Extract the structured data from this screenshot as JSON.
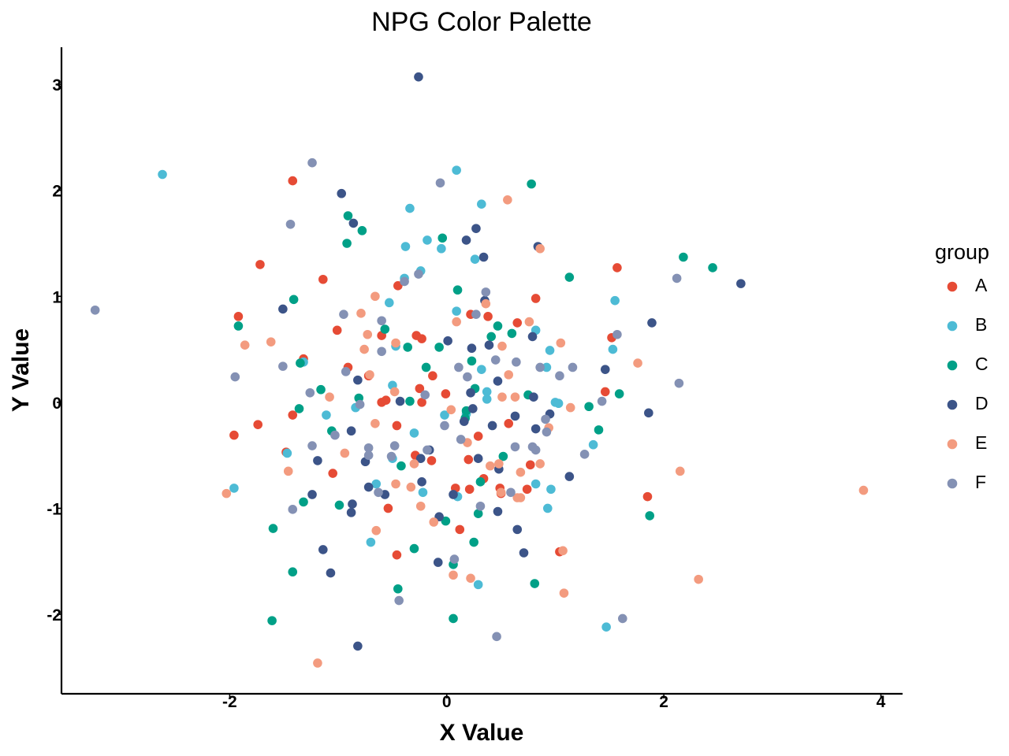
{
  "chart_data": {
    "type": "scatter",
    "title": "NPG Color Palette",
    "xlabel": "X Value",
    "ylabel": "Y Value",
    "xlim": [
      -3.55,
      4.2
    ],
    "ylim": [
      -2.75,
      3.35
    ],
    "xticks": [
      -2,
      0,
      2,
      4
    ],
    "yticks": [
      -2,
      -1,
      0,
      1,
      2,
      3
    ],
    "xtick_labels": [
      "-2",
      "0",
      "2",
      "4"
    ],
    "ytick_labels": [
      "-2",
      "-1",
      "0",
      "1",
      "2",
      "3"
    ],
    "grid": false,
    "legend": {
      "title": "group",
      "position": "right"
    },
    "series": [
      {
        "name": "A",
        "color": "#E64B35",
        "points": [
          [
            -1.42,
            2.09
          ],
          [
            -1.72,
            1.3
          ],
          [
            -1.14,
            1.16
          ],
          [
            -1.92,
            0.81
          ],
          [
            -1.32,
            0.41
          ],
          [
            -1.01,
            0.68
          ],
          [
            -0.91,
            0.33
          ],
          [
            -1.42,
            -0.12
          ],
          [
            -1.74,
            -0.21
          ],
          [
            -1.96,
            -0.31
          ],
          [
            -1.48,
            -0.47
          ],
          [
            -1.05,
            -0.67
          ],
          [
            -0.45,
            1.1
          ],
          [
            -0.6,
            0.63
          ],
          [
            -0.28,
            0.63
          ],
          [
            -0.23,
            0.6
          ],
          [
            -0.6,
            0.0
          ],
          [
            -0.56,
            0.02
          ],
          [
            -0.46,
            -0.22
          ],
          [
            -0.72,
            0.25
          ],
          [
            -0.23,
            0.0
          ],
          [
            -0.25,
            0.13
          ],
          [
            -0.13,
            0.25
          ],
          [
            -0.01,
            0.08
          ],
          [
            0.22,
            0.83
          ],
          [
            0.38,
            0.81
          ],
          [
            0.82,
            0.98
          ],
          [
            0.65,
            0.75
          ],
          [
            0.29,
            -0.32
          ],
          [
            0.2,
            -0.54
          ],
          [
            0.08,
            -0.81
          ],
          [
            -0.29,
            -0.5
          ],
          [
            -0.14,
            -0.55
          ],
          [
            0.21,
            -0.82
          ],
          [
            0.34,
            -0.72
          ],
          [
            0.49,
            -0.81
          ],
          [
            0.5,
            -0.86
          ],
          [
            0.57,
            -0.2
          ],
          [
            0.77,
            -0.59
          ],
          [
            0.74,
            -0.82
          ],
          [
            -0.54,
            -1.0
          ],
          [
            -0.46,
            -1.44
          ],
          [
            0.12,
            -1.2
          ],
          [
            1.04,
            -1.41
          ],
          [
            1.52,
            0.61
          ],
          [
            1.57,
            1.27
          ],
          [
            1.46,
            0.1
          ],
          [
            1.85,
            -0.89
          ]
        ]
      },
      {
        "name": "B",
        "color": "#4DBBD5",
        "points": [
          [
            -2.62,
            2.15
          ],
          [
            0.09,
            2.19
          ],
          [
            0.32,
            1.87
          ],
          [
            -0.34,
            1.83
          ],
          [
            -0.38,
            1.47
          ],
          [
            -0.18,
            1.53
          ],
          [
            -0.05,
            1.45
          ],
          [
            0.26,
            1.35
          ],
          [
            -0.39,
            1.17
          ],
          [
            -0.24,
            1.24
          ],
          [
            -0.53,
            0.94
          ],
          [
            0.09,
            0.86
          ],
          [
            0.82,
            0.68
          ],
          [
            0.95,
            0.49
          ],
          [
            0.92,
            0.33
          ],
          [
            0.32,
            0.31
          ],
          [
            -0.47,
            0.53
          ],
          [
            -0.5,
            0.16
          ],
          [
            -1.32,
            0.38
          ],
          [
            -1.11,
            -0.12
          ],
          [
            -0.84,
            -0.05
          ],
          [
            -0.02,
            -0.12
          ],
          [
            0.18,
            -0.11
          ],
          [
            0.37,
            0.1
          ],
          [
            0.37,
            0.03
          ],
          [
            1.0,
            0.0
          ],
          [
            1.03,
            -0.01
          ],
          [
            1.55,
            0.96
          ],
          [
            1.53,
            0.5
          ],
          [
            -1.47,
            -0.48
          ],
          [
            -0.5,
            -0.53
          ],
          [
            -0.3,
            -0.29
          ],
          [
            -0.22,
            -0.85
          ],
          [
            -0.65,
            -0.77
          ],
          [
            0.1,
            -0.89
          ],
          [
            0.82,
            -0.77
          ],
          [
            0.96,
            -0.82
          ],
          [
            0.93,
            -1.0
          ],
          [
            1.35,
            -0.4
          ],
          [
            -1.96,
            -0.81
          ],
          [
            -0.7,
            -1.32
          ],
          [
            0.29,
            -1.72
          ],
          [
            1.47,
            -2.12
          ]
        ]
      },
      {
        "name": "C",
        "color": "#00A087",
        "points": [
          [
            -0.91,
            1.76
          ],
          [
            -0.78,
            1.62
          ],
          [
            -0.92,
            1.5
          ],
          [
            -0.04,
            1.55
          ],
          [
            0.78,
            2.06
          ],
          [
            1.13,
            1.18
          ],
          [
            2.18,
            1.37
          ],
          [
            2.45,
            1.27
          ],
          [
            -1.41,
            0.97
          ],
          [
            -1.92,
            0.72
          ],
          [
            0.1,
            1.06
          ],
          [
            0.47,
            0.72
          ],
          [
            0.41,
            0.62
          ],
          [
            0.6,
            0.65
          ],
          [
            -0.57,
            0.69
          ],
          [
            -0.36,
            0.52
          ],
          [
            -0.07,
            0.52
          ],
          [
            0.23,
            0.39
          ],
          [
            -0.19,
            0.33
          ],
          [
            -1.35,
            0.37
          ],
          [
            -1.16,
            0.12
          ],
          [
            -0.81,
            0.04
          ],
          [
            -0.34,
            0.01
          ],
          [
            0.26,
            0.13
          ],
          [
            0.75,
            0.07
          ],
          [
            1.31,
            -0.04
          ],
          [
            1.59,
            0.08
          ],
          [
            -1.36,
            -0.06
          ],
          [
            -1.06,
            -0.27
          ],
          [
            -0.42,
            -0.6
          ],
          [
            0.18,
            -0.08
          ],
          [
            0.17,
            -0.15
          ],
          [
            0.52,
            -0.51
          ],
          [
            0.31,
            -0.75
          ],
          [
            1.4,
            -0.26
          ],
          [
            -1.6,
            -1.19
          ],
          [
            -1.32,
            -0.94
          ],
          [
            -0.99,
            -0.97
          ],
          [
            -0.3,
            -1.38
          ],
          [
            -0.01,
            -1.12
          ],
          [
            0.29,
            -1.05
          ],
          [
            0.25,
            -1.32
          ],
          [
            0.06,
            -1.53
          ],
          [
            -0.45,
            -1.76
          ],
          [
            0.81,
            -1.71
          ],
          [
            1.87,
            -1.07
          ],
          [
            -1.42,
            -1.6
          ],
          [
            -1.61,
            -2.06
          ],
          [
            0.06,
            -2.04
          ]
        ]
      },
      {
        "name": "D",
        "color": "#3C5488",
        "points": [
          [
            -0.26,
            3.07
          ],
          [
            -0.97,
            1.97
          ],
          [
            -0.86,
            1.69
          ],
          [
            0.27,
            1.64
          ],
          [
            0.18,
            1.53
          ],
          [
            0.34,
            1.37
          ],
          [
            0.84,
            1.47
          ],
          [
            2.71,
            1.12
          ],
          [
            -1.51,
            0.88
          ],
          [
            0.35,
            0.96
          ],
          [
            1.89,
            0.75
          ],
          [
            0.79,
            0.62
          ],
          [
            0.39,
            0.54
          ],
          [
            0.23,
            0.51
          ],
          [
            0.01,
            0.58
          ],
          [
            1.46,
            0.31
          ],
          [
            0.47,
            0.2
          ],
          [
            -0.82,
            0.21
          ],
          [
            -0.43,
            0.01
          ],
          [
            0.22,
            0.09
          ],
          [
            0.24,
            -0.06
          ],
          [
            0.16,
            -0.18
          ],
          [
            0.42,
            -0.22
          ],
          [
            0.63,
            -0.13
          ],
          [
            0.8,
            0.05
          ],
          [
            0.82,
            -0.25
          ],
          [
            0.95,
            -0.11
          ],
          [
            1.86,
            -0.1
          ],
          [
            -0.88,
            -0.27
          ],
          [
            -1.19,
            -0.55
          ],
          [
            -0.75,
            -0.56
          ],
          [
            -0.24,
            -0.53
          ],
          [
            -0.16,
            -0.45
          ],
          [
            0.29,
            -0.53
          ],
          [
            0.48,
            -0.63
          ],
          [
            -0.23,
            -0.75
          ],
          [
            -0.72,
            -0.8
          ],
          [
            -1.24,
            -0.87
          ],
          [
            -0.57,
            -0.87
          ],
          [
            0.06,
            -0.87
          ],
          [
            -0.87,
            -0.96
          ],
          [
            -0.88,
            -1.04
          ],
          [
            -0.07,
            -1.08
          ],
          [
            0.47,
            -1.03
          ],
          [
            0.65,
            -1.2
          ],
          [
            0.71,
            -1.42
          ],
          [
            1.13,
            -0.7
          ],
          [
            -1.14,
            -1.39
          ],
          [
            -1.07,
            -1.61
          ],
          [
            -0.08,
            -1.51
          ],
          [
            -0.82,
            -2.3
          ]
        ]
      },
      {
        "name": "E",
        "color": "#F39B7F",
        "points": [
          [
            0.56,
            1.91
          ],
          [
            0.86,
            1.45
          ],
          [
            0.36,
            0.93
          ],
          [
            -0.66,
            1.0
          ],
          [
            -0.79,
            0.84
          ],
          [
            -0.73,
            0.64
          ],
          [
            0.09,
            0.76
          ],
          [
            0.76,
            0.76
          ],
          [
            1.05,
            0.56
          ],
          [
            -1.62,
            0.57
          ],
          [
            -1.86,
            0.54
          ],
          [
            -0.76,
            0.5
          ],
          [
            -0.47,
            0.56
          ],
          [
            0.51,
            0.53
          ],
          [
            0.57,
            0.26
          ],
          [
            1.76,
            0.37
          ],
          [
            -0.71,
            0.26
          ],
          [
            -1.08,
            0.05
          ],
          [
            -0.48,
            0.1
          ],
          [
            0.51,
            0.05
          ],
          [
            0.63,
            0.05
          ],
          [
            1.14,
            -0.05
          ],
          [
            -0.66,
            -0.2
          ],
          [
            0.04,
            -0.07
          ],
          [
            0.19,
            -0.38
          ],
          [
            0.94,
            -0.24
          ],
          [
            -1.46,
            -0.65
          ],
          [
            -0.94,
            -0.48
          ],
          [
            -0.3,
            -0.58
          ],
          [
            0.4,
            -0.6
          ],
          [
            0.48,
            -0.58
          ],
          [
            0.86,
            -0.58
          ],
          [
            0.68,
            -0.66
          ],
          [
            -0.47,
            -0.77
          ],
          [
            -0.33,
            -0.8
          ],
          [
            0.5,
            -0.85
          ],
          [
            0.65,
            -0.9
          ],
          [
            0.68,
            -0.9
          ],
          [
            -2.03,
            -0.86
          ],
          [
            -0.24,
            -0.98
          ],
          [
            -0.12,
            -1.13
          ],
          [
            -0.65,
            -1.21
          ],
          [
            0.06,
            -1.63
          ],
          [
            0.22,
            -1.66
          ],
          [
            1.07,
            -1.4
          ],
          [
            1.08,
            -1.8
          ],
          [
            2.15,
            -0.65
          ],
          [
            2.32,
            -1.67
          ],
          [
            -1.19,
            -2.46
          ],
          [
            3.84,
            -0.83
          ]
        ]
      },
      {
        "name": "F",
        "color": "#8491B4",
        "points": [
          [
            -3.24,
            0.87
          ],
          [
            -1.24,
            2.26
          ],
          [
            -0.06,
            2.07
          ],
          [
            -1.44,
            1.68
          ],
          [
            -0.26,
            1.21
          ],
          [
            -0.39,
            1.14
          ],
          [
            0.36,
            1.04
          ],
          [
            2.12,
            1.17
          ],
          [
            -0.95,
            0.83
          ],
          [
            -0.6,
            0.77
          ],
          [
            0.27,
            0.83
          ],
          [
            1.57,
            0.64
          ],
          [
            -0.6,
            0.48
          ],
          [
            0.45,
            0.4
          ],
          [
            0.64,
            0.38
          ],
          [
            0.86,
            0.33
          ],
          [
            1.16,
            0.33
          ],
          [
            -1.51,
            0.34
          ],
          [
            -0.93,
            0.29
          ],
          [
            0.11,
            0.33
          ],
          [
            0.19,
            0.24
          ],
          [
            1.04,
            0.25
          ],
          [
            -1.95,
            0.24
          ],
          [
            2.14,
            0.18
          ],
          [
            -1.26,
            0.09
          ],
          [
            -0.2,
            0.07
          ],
          [
            1.43,
            0.01
          ],
          [
            -0.8,
            -0.02
          ],
          [
            -0.02,
            -0.22
          ],
          [
            0.13,
            -0.35
          ],
          [
            0.92,
            -0.28
          ],
          [
            0.91,
            -0.16
          ],
          [
            -1.03,
            -0.31
          ],
          [
            -1.24,
            -0.41
          ],
          [
            -0.72,
            -0.43
          ],
          [
            -0.72,
            -0.5
          ],
          [
            -0.51,
            -0.51
          ],
          [
            -0.48,
            -0.41
          ],
          [
            -0.18,
            -0.45
          ],
          [
            0.63,
            -0.42
          ],
          [
            0.79,
            -0.42
          ],
          [
            0.82,
            -0.45
          ],
          [
            1.27,
            -0.49
          ],
          [
            -0.63,
            -0.85
          ],
          [
            0.59,
            -0.85
          ],
          [
            -1.42,
            -1.01
          ],
          [
            0.31,
            -0.98
          ],
          [
            0.07,
            -1.48
          ],
          [
            -0.44,
            -1.87
          ],
          [
            0.46,
            -2.21
          ],
          [
            1.62,
            -2.04
          ]
        ]
      }
    ]
  }
}
